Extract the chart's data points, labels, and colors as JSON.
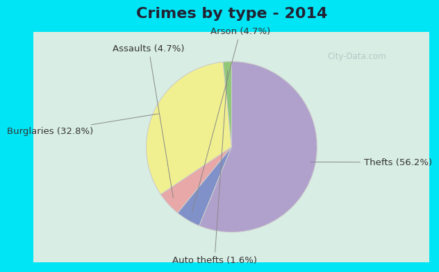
{
  "title": "Crimes by type - 2014",
  "slices": [
    {
      "label": "Thefts (56.2%)",
      "value": 56.2,
      "color": "#b0a0cc"
    },
    {
      "label": "Arson (4.7%)",
      "value": 4.7,
      "color": "#8090c8"
    },
    {
      "label": "Assaults (4.7%)",
      "value": 4.7,
      "color": "#e8a8a8"
    },
    {
      "label": "Burglaries (32.8%)",
      "value": 32.8,
      "color": "#f0f090"
    },
    {
      "label": "Auto thefts (1.6%)",
      "value": 1.6,
      "color": "#90c878"
    }
  ],
  "bg_cyan": "#00e5f5",
  "bg_inner": "#d8ede4",
  "title_fontsize": 16,
  "label_fontsize": 9.5,
  "watermark": "City-Data.com",
  "startangle": 90
}
